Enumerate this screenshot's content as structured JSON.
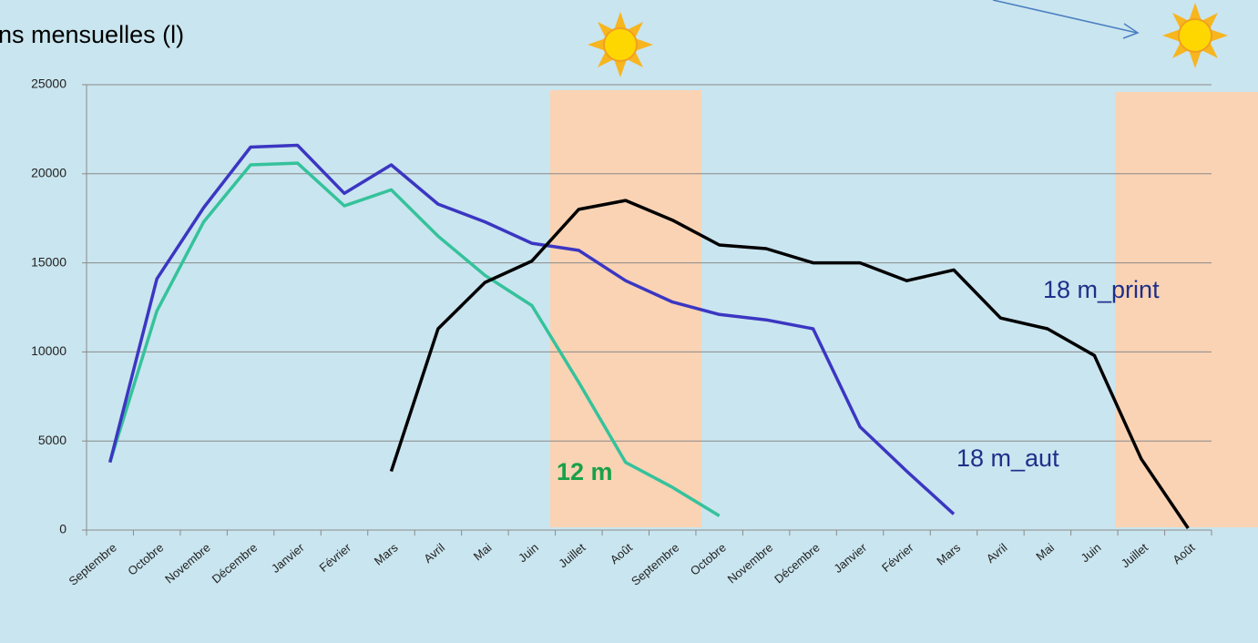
{
  "chart_data": {
    "type": "line",
    "title": "ns mensuelles (l)",
    "categories": [
      "Septembre",
      "Octobre",
      "Novembre",
      "Décembre",
      "Janvier",
      "Février",
      "Mars",
      "Avril",
      "Mai",
      "Juin",
      "Juillet",
      "Août",
      "Septembre",
      "Octobre",
      "Novembre",
      "Décembre",
      "Janvier",
      "Février",
      "Mars",
      "Avril",
      "Mai",
      "Juin",
      "Juillet",
      "Août"
    ],
    "series": [
      {
        "name": "12 m",
        "color": "#35c29b",
        "values": [
          3800,
          12300,
          17300,
          20500,
          20600,
          18200,
          19100,
          16500,
          14300,
          12600,
          8300,
          3800,
          2400,
          800,
          null,
          null,
          null,
          null,
          null,
          null,
          null,
          null,
          null,
          null
        ]
      },
      {
        "name": "18 m_aut",
        "color": "#3b36c2",
        "values": [
          3800,
          14100,
          18100,
          21500,
          21600,
          18900,
          20500,
          18300,
          17300,
          16100,
          15700,
          14000,
          12800,
          12100,
          11800,
          11300,
          5800,
          3300,
          900,
          null,
          null,
          null,
          null,
          null
        ]
      },
      {
        "name": "18 m_print",
        "color": "#000000",
        "values": [
          null,
          null,
          null,
          null,
          null,
          null,
          3300,
          11300,
          13900,
          15100,
          18000,
          18500,
          17400,
          16000,
          15800,
          15000,
          15000,
          14000,
          14600,
          11900,
          11300,
          9800,
          4000,
          100
        ]
      }
    ],
    "ylim": [
      0,
      25000
    ],
    "yticks": [
      0,
      5000,
      10000,
      15000,
      20000,
      25000
    ],
    "grid": true
  }
}
